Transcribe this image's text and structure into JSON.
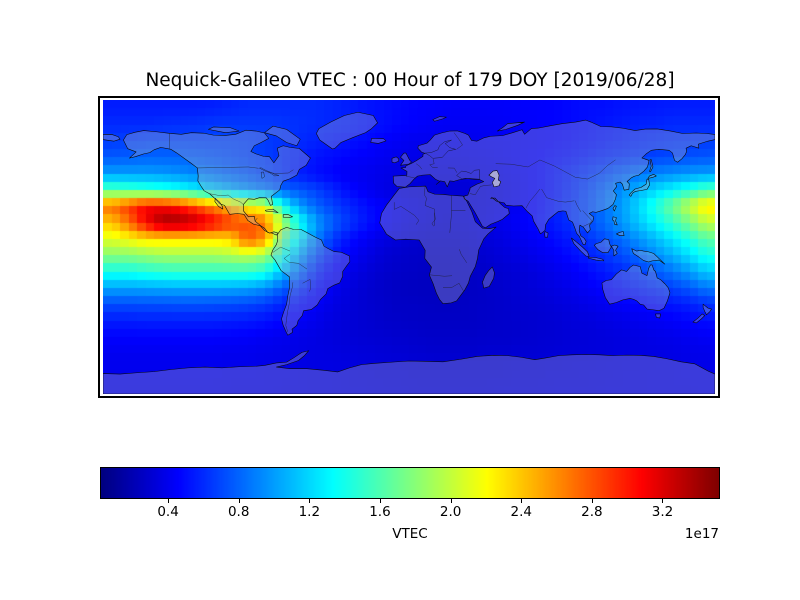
{
  "figure": {
    "title": "Nequick-Galileo VTEC : 00 Hour of 179 DOY [2019/06/28]",
    "background_color": "#ffffff"
  },
  "colorbar": {
    "label": "VTEC",
    "exponent_label": "1e17",
    "tick_labels": [
      "0.4",
      "0.8",
      "1.2",
      "1.6",
      "2.0",
      "2.4",
      "2.8",
      "3.2"
    ],
    "tick_values": [
      0.4,
      0.8,
      1.2,
      1.6,
      2.0,
      2.4,
      2.8,
      3.2
    ],
    "vmin": 0.02,
    "vmax": 3.52,
    "colormap": "jet"
  },
  "chart_data": {
    "type": "heatmap",
    "title": "Nequick-Galileo VTEC : 00 Hour of 179 DOY [2019/06/28]",
    "colormap": "jet",
    "value_units": "1e17 el/m^2",
    "vmin": 0.02,
    "vmax": 3.52,
    "colorbar_ticks": [
      0.4,
      0.8,
      1.2,
      1.6,
      2.0,
      2.4,
      2.8,
      3.2
    ],
    "projection": "equirectangular",
    "lon_range": [
      -180,
      180
    ],
    "lat_range": [
      -90,
      90
    ],
    "grid": {
      "lon_start": -175,
      "lon_step": 10,
      "lat_start": 85,
      "lat_step": -10,
      "cols": 36,
      "rows": 18,
      "values": [
        [
          0.55,
          0.55,
          0.55,
          0.55,
          0.55,
          0.55,
          0.56,
          0.58,
          0.6,
          0.6,
          0.6,
          0.6,
          0.6,
          0.58,
          0.55,
          0.52,
          0.5,
          0.48,
          0.46,
          0.45,
          0.44,
          0.44,
          0.44,
          0.44,
          0.45,
          0.45,
          0.46,
          0.48,
          0.5,
          0.5,
          0.52,
          0.53,
          0.54,
          0.55,
          0.55,
          0.55
        ],
        [
          0.6,
          0.6,
          0.6,
          0.61,
          0.62,
          0.63,
          0.65,
          0.65,
          0.65,
          0.65,
          0.64,
          0.62,
          0.6,
          0.58,
          0.56,
          0.53,
          0.5,
          0.47,
          0.45,
          0.43,
          0.42,
          0.42,
          0.42,
          0.43,
          0.44,
          0.45,
          0.46,
          0.48,
          0.5,
          0.53,
          0.55,
          0.57,
          0.58,
          0.6,
          0.6,
          0.6
        ],
        [
          0.66,
          0.68,
          0.7,
          0.7,
          0.7,
          0.7,
          0.7,
          0.7,
          0.68,
          0.66,
          0.63,
          0.6,
          0.57,
          0.54,
          0.51,
          0.48,
          0.45,
          0.42,
          0.4,
          0.4,
          0.4,
          0.4,
          0.41,
          0.42,
          0.43,
          0.44,
          0.46,
          0.48,
          0.51,
          0.54,
          0.57,
          0.6,
          0.62,
          0.64,
          0.65,
          0.66
        ],
        [
          0.76,
          0.78,
          0.8,
          0.8,
          0.8,
          0.78,
          0.76,
          0.73,
          0.7,
          0.67,
          0.62,
          0.57,
          0.52,
          0.49,
          0.46,
          0.44,
          0.41,
          0.39,
          0.38,
          0.37,
          0.37,
          0.38,
          0.39,
          0.41,
          0.43,
          0.46,
          0.49,
          0.52,
          0.56,
          0.6,
          0.63,
          0.66,
          0.69,
          0.71,
          0.73,
          0.75
        ],
        [
          1.0,
          1.0,
          1.0,
          0.98,
          0.95,
          0.91,
          0.86,
          0.81,
          0.76,
          0.7,
          0.63,
          0.56,
          0.5,
          0.46,
          0.42,
          0.4,
          0.38,
          0.36,
          0.35,
          0.34,
          0.34,
          0.35,
          0.37,
          0.39,
          0.42,
          0.46,
          0.52,
          0.58,
          0.65,
          0.72,
          0.8,
          0.86,
          0.91,
          0.95,
          0.98,
          1.0
        ],
        [
          1.6,
          1.55,
          1.5,
          1.45,
          1.38,
          1.28,
          1.18,
          1.08,
          0.98,
          0.9,
          0.8,
          0.75,
          0.68,
          0.58,
          0.48,
          0.42,
          0.37,
          0.34,
          0.32,
          0.31,
          0.31,
          0.32,
          0.34,
          0.37,
          0.41,
          0.46,
          0.52,
          0.6,
          0.7,
          0.82,
          0.95,
          1.08,
          1.2,
          1.32,
          1.46,
          1.62
        ],
        [
          2.7,
          2.9,
          3.1,
          3.1,
          3.0,
          2.8,
          2.6,
          2.4,
          2.2,
          2.1,
          1.4,
          1.0,
          0.8,
          0.68,
          0.58,
          0.5,
          0.44,
          0.39,
          0.36,
          0.33,
          0.32,
          0.33,
          0.35,
          0.38,
          0.42,
          0.47,
          0.54,
          0.62,
          0.72,
          0.85,
          1.0,
          1.2,
          1.45,
          1.72,
          2.02,
          2.3
        ],
        [
          2.4,
          2.7,
          3.1,
          3.4,
          3.4,
          3.3,
          3.1,
          2.9,
          2.8,
          2.7,
          2.0,
          1.4,
          1.0,
          0.78,
          0.63,
          0.52,
          0.44,
          0.38,
          0.34,
          0.32,
          0.31,
          0.33,
          0.36,
          0.4,
          0.44,
          0.49,
          0.55,
          0.62,
          0.72,
          0.84,
          0.98,
          1.14,
          1.32,
          1.52,
          1.74,
          1.98
        ],
        [
          2.1,
          2.2,
          2.3,
          2.3,
          2.3,
          2.3,
          2.3,
          2.35,
          2.8,
          2.6,
          1.7,
          1.3,
          0.9,
          0.65,
          0.5,
          0.42,
          0.36,
          0.32,
          0.29,
          0.28,
          0.28,
          0.3,
          0.33,
          0.36,
          0.4,
          0.44,
          0.49,
          0.55,
          0.63,
          0.72,
          0.83,
          0.96,
          1.1,
          1.26,
          1.44,
          1.64
        ],
        [
          1.8,
          1.8,
          1.85,
          1.9,
          1.9,
          1.9,
          1.9,
          1.95,
          2.0,
          1.9,
          1.45,
          1.05,
          0.75,
          0.55,
          0.44,
          0.37,
          0.31,
          0.28,
          0.27,
          0.26,
          0.26,
          0.28,
          0.3,
          0.33,
          0.36,
          0.4,
          0.44,
          0.49,
          0.56,
          0.63,
          0.72,
          0.82,
          0.94,
          1.08,
          1.24,
          1.42
        ],
        [
          1.4,
          1.4,
          1.45,
          1.48,
          1.5,
          1.5,
          1.5,
          1.5,
          1.5,
          1.42,
          1.12,
          0.85,
          0.6,
          0.46,
          0.38,
          0.33,
          0.29,
          0.27,
          0.26,
          0.25,
          0.25,
          0.26,
          0.28,
          0.3,
          0.32,
          0.35,
          0.39,
          0.43,
          0.48,
          0.54,
          0.6,
          0.67,
          0.76,
          0.86,
          0.99,
          1.15
        ],
        [
          1.02,
          1.02,
          1.03,
          1.04,
          1.05,
          1.05,
          1.05,
          1.04,
          1.02,
          0.95,
          0.8,
          0.64,
          0.5,
          0.4,
          0.34,
          0.3,
          0.27,
          0.25,
          0.24,
          0.24,
          0.24,
          0.25,
          0.27,
          0.29,
          0.31,
          0.33,
          0.36,
          0.39,
          0.43,
          0.47,
          0.52,
          0.57,
          0.62,
          0.68,
          0.76,
          0.87
        ],
        [
          0.72,
          0.72,
          0.73,
          0.73,
          0.74,
          0.74,
          0.73,
          0.72,
          0.7,
          0.66,
          0.58,
          0.5,
          0.43,
          0.37,
          0.33,
          0.3,
          0.28,
          0.26,
          0.26,
          0.25,
          0.25,
          0.26,
          0.27,
          0.28,
          0.3,
          0.31,
          0.33,
          0.35,
          0.38,
          0.41,
          0.44,
          0.47,
          0.5,
          0.53,
          0.57,
          0.63
        ],
        [
          0.55,
          0.55,
          0.56,
          0.56,
          0.56,
          0.56,
          0.56,
          0.55,
          0.54,
          0.51,
          0.47,
          0.43,
          0.39,
          0.35,
          0.32,
          0.3,
          0.28,
          0.27,
          0.26,
          0.26,
          0.26,
          0.26,
          0.27,
          0.28,
          0.29,
          0.3,
          0.31,
          0.33,
          0.34,
          0.36,
          0.38,
          0.4,
          0.42,
          0.44,
          0.47,
          0.5
        ],
        [
          0.46,
          0.46,
          0.46,
          0.46,
          0.46,
          0.46,
          0.46,
          0.45,
          0.44,
          0.42,
          0.4,
          0.38,
          0.36,
          0.34,
          0.32,
          0.31,
          0.3,
          0.29,
          0.28,
          0.27,
          0.27,
          0.27,
          0.28,
          0.28,
          0.29,
          0.3,
          0.31,
          0.32,
          0.33,
          0.34,
          0.35,
          0.36,
          0.38,
          0.39,
          0.41,
          0.43
        ],
        [
          0.41,
          0.41,
          0.41,
          0.41,
          0.41,
          0.41,
          0.41,
          0.4,
          0.4,
          0.39,
          0.38,
          0.37,
          0.36,
          0.35,
          0.34,
          0.33,
          0.32,
          0.31,
          0.3,
          0.29,
          0.29,
          0.29,
          0.3,
          0.3,
          0.31,
          0.31,
          0.32,
          0.33,
          0.33,
          0.34,
          0.35,
          0.36,
          0.36,
          0.37,
          0.38,
          0.39
        ],
        [
          0.4,
          0.4,
          0.4,
          0.4,
          0.4,
          0.4,
          0.4,
          0.39,
          0.39,
          0.38,
          0.38,
          0.37,
          0.36,
          0.36,
          0.35,
          0.34,
          0.33,
          0.33,
          0.32,
          0.32,
          0.32,
          0.32,
          0.32,
          0.32,
          0.33,
          0.33,
          0.34,
          0.34,
          0.35,
          0.35,
          0.36,
          0.36,
          0.37,
          0.37,
          0.38,
          0.38
        ],
        [
          0.39,
          0.39,
          0.39,
          0.39,
          0.39,
          0.39,
          0.39,
          0.38,
          0.38,
          0.38,
          0.37,
          0.37,
          0.36,
          0.36,
          0.35,
          0.35,
          0.34,
          0.34,
          0.33,
          0.33,
          0.33,
          0.33,
          0.33,
          0.34,
          0.34,
          0.34,
          0.35,
          0.35,
          0.35,
          0.36,
          0.36,
          0.36,
          0.37,
          0.37,
          0.37,
          0.38
        ]
      ]
    }
  }
}
